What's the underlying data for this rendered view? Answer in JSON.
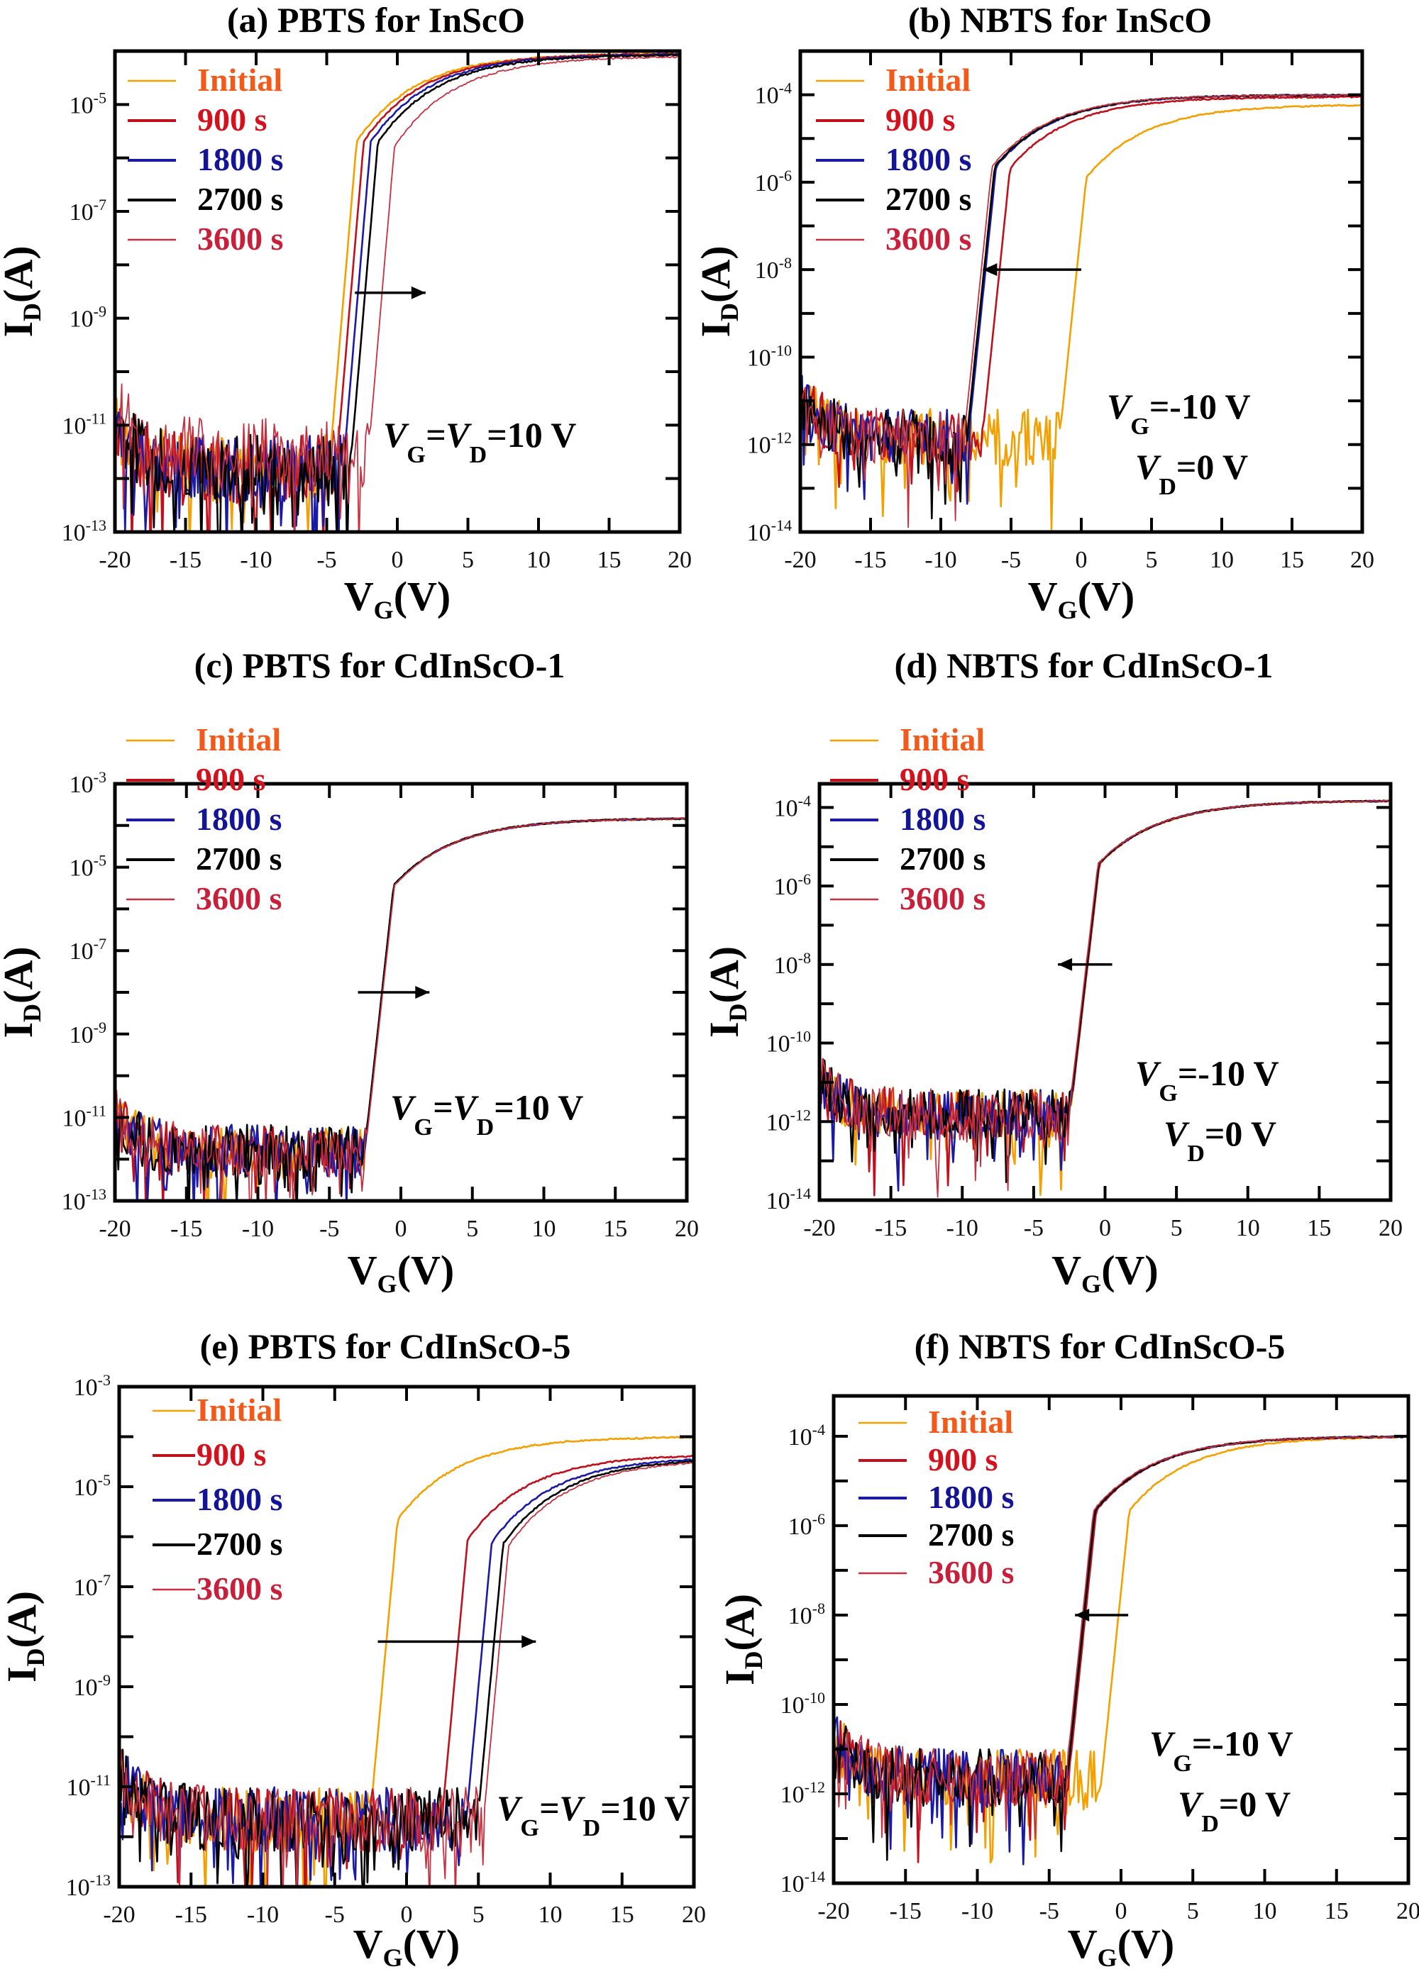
{
  "figure": {
    "series_legend": [
      {
        "name": "Initial",
        "color": "#f4a000",
        "text_color": "#f35a1a"
      },
      {
        "name": "900 s",
        "color": "#c0101c",
        "text_color": "#d4121e"
      },
      {
        "name": "1800 s",
        "color": "#1a1aa6",
        "text_color": "#141496"
      },
      {
        "name": "2700 s",
        "color": "#000000",
        "text_color": "#000000"
      },
      {
        "name": "3600 s",
        "color": "#c83040",
        "text_color": "#c8203a"
      }
    ]
  },
  "chart_data": [
    {
      "id": "a",
      "type": "line",
      "title": "(a) PBTS for InScO",
      "xlabel": "VG(V)",
      "ylabel": "ID(A)",
      "xlim": [
        -20,
        20
      ],
      "ylim": [
        1e-13,
        0.0001
      ],
      "yscale": "log",
      "xticks": [
        -20,
        -15,
        -10,
        -5,
        0,
        5,
        10,
        15,
        20
      ],
      "yticks_labeled": [
        -13,
        -11,
        -9,
        -7,
        -5
      ],
      "condition": [
        "V",
        "G",
        "=V",
        "D",
        "=10 V"
      ],
      "arrow": {
        "direction": "right",
        "x_from": -3,
        "x_to": 2,
        "y": 3e-09
      },
      "series": [
        {
          "name": "Initial",
          "vth": -4.8,
          "ioff": 2e-12,
          "ion": 9e-05
        },
        {
          "name": "900 s",
          "vth": -4.3,
          "ioff": 2e-12,
          "ion": 9e-05
        },
        {
          "name": "1800 s",
          "vth": -3.8,
          "ioff": 2e-12,
          "ion": 8.8e-05
        },
        {
          "name": "2700 s",
          "vth": -3.3,
          "ioff": 2e-12,
          "ion": 8.6e-05
        },
        {
          "name": "3600 s",
          "vth": -2.0,
          "ioff": 4e-12,
          "ion": 8e-05
        }
      ]
    },
    {
      "id": "b",
      "type": "line",
      "title": "(b) NBTS for InScO",
      "xlabel": "VG(V)",
      "ylabel": "ID(A)",
      "xlim": [
        -20,
        20
      ],
      "ylim": [
        1e-14,
        0.001
      ],
      "yscale": "log",
      "xticks": [
        -20,
        -15,
        -10,
        -5,
        0,
        5,
        10,
        15,
        20
      ],
      "yticks_labeled": [
        -14,
        -12,
        -10,
        -8,
        -6,
        -4
      ],
      "condition": [
        "V",
        "G",
        "=-10 V",
        "V",
        "D",
        "=0 V"
      ],
      "arrow": {
        "direction": "left",
        "x_from": 0,
        "x_to": -7,
        "y": 1e-08
      },
      "series": [
        {
          "name": "Initial",
          "vth": -1.5,
          "ioff": 2e-12,
          "ion": 6e-05
        },
        {
          "name": "900 s",
          "vth": -7.0,
          "ioff": 2e-12,
          "ion": 9e-05
        },
        {
          "name": "1800 s",
          "vth": -8.0,
          "ioff": 2e-12,
          "ion": 0.0001
        },
        {
          "name": "2700 s",
          "vth": -8.1,
          "ioff": 2e-12,
          "ion": 0.0001
        },
        {
          "name": "3600 s",
          "vth": -8.3,
          "ioff": 2e-12,
          "ion": 0.0001
        }
      ]
    },
    {
      "id": "c",
      "type": "line",
      "title": "(c) PBTS for CdInScO-1",
      "xlabel": "VG(V)",
      "ylabel": "ID(A)",
      "xlim": [
        -20,
        20
      ],
      "ylim": [
        1e-13,
        0.001
      ],
      "yscale": "log",
      "xticks": [
        -20,
        -15,
        -10,
        -5,
        0,
        5,
        10,
        15,
        20
      ],
      "yticks_labeled": [
        -13,
        -11,
        -9,
        -7,
        -5,
        -3
      ],
      "condition": [
        "V",
        "G",
        "=V",
        "D",
        "=10 V"
      ],
      "arrow": {
        "direction": "right",
        "x_from": -3,
        "x_to": 2,
        "y": 1e-08
      },
      "series": [
        {
          "name": "Initial",
          "vth": -2.5,
          "ioff": 2e-12,
          "ion": 0.00015
        },
        {
          "name": "900 s",
          "vth": -2.5,
          "ioff": 2e-12,
          "ion": 0.00015
        },
        {
          "name": "1800 s",
          "vth": -2.5,
          "ioff": 2e-12,
          "ion": 0.00015
        },
        {
          "name": "2700 s",
          "vth": -2.5,
          "ioff": 2e-12,
          "ion": 0.00015
        },
        {
          "name": "3600 s",
          "vth": -2.45,
          "ioff": 2e-12,
          "ion": 0.00015
        }
      ]
    },
    {
      "id": "d",
      "type": "line",
      "title": "(d) NBTS for CdInScO-1",
      "xlabel": "VG(V)",
      "ylabel": "ID(A)",
      "xlim": [
        -20,
        20
      ],
      "ylim": [
        1e-14,
        0.0004
      ],
      "yscale": "log",
      "xticks": [
        -20,
        -15,
        -10,
        -5,
        0,
        5,
        10,
        15,
        20
      ],
      "yticks_labeled": [
        -14,
        -12,
        -10,
        -8,
        -6,
        -4
      ],
      "condition": [
        "V",
        "G",
        "=-10 V",
        "V",
        "D",
        "=0 V"
      ],
      "arrow": {
        "direction": "left",
        "x_from": 0.5,
        "x_to": -3.3,
        "y": 1e-08
      },
      "series": [
        {
          "name": "Initial",
          "vth": -2.4,
          "ioff": 2e-12,
          "ion": 0.00015
        },
        {
          "name": "900 s",
          "vth": -2.4,
          "ioff": 2e-12,
          "ion": 0.00015
        },
        {
          "name": "1800 s",
          "vth": -2.45,
          "ioff": 2e-12,
          "ion": 0.00015
        },
        {
          "name": "2700 s",
          "vth": -2.45,
          "ioff": 2e-12,
          "ion": 0.00015
        },
        {
          "name": "3600 s",
          "vth": -2.5,
          "ioff": 2e-12,
          "ion": 0.00015
        }
      ]
    },
    {
      "id": "e",
      "type": "line",
      "title": "(e) PBTS for CdInScO-5",
      "xlabel": "VG(V)",
      "ylabel": "ID(A)",
      "xlim": [
        -20,
        20
      ],
      "ylim": [
        1e-13,
        0.001
      ],
      "yscale": "log",
      "xticks": [
        -20,
        -15,
        -10,
        -5,
        0,
        5,
        10,
        15,
        20
      ],
      "yticks_labeled": [
        -13,
        -11,
        -9,
        -7,
        -5,
        -3
      ],
      "condition": [
        "V",
        "G",
        "=V",
        "D",
        "=10 V"
      ],
      "arrow": {
        "direction": "right",
        "x_from": -2,
        "x_to": 9,
        "y": 8e-09
      },
      "series": [
        {
          "name": "Initial",
          "vth": -2.5,
          "ioff": 3e-12,
          "ion": 0.0001
        },
        {
          "name": "900 s",
          "vth": 2.5,
          "ioff": 3e-12,
          "ion": 4.5e-05
        },
        {
          "name": "1800 s",
          "vth": 4.2,
          "ioff": 3e-12,
          "ion": 4e-05
        },
        {
          "name": "2700 s",
          "vth": 5.0,
          "ioff": 3e-12,
          "ion": 3.8e-05
        },
        {
          "name": "3600 s",
          "vth": 5.4,
          "ioff": 3e-12,
          "ion": 3.6e-05
        }
      ]
    },
    {
      "id": "f",
      "type": "line",
      "title": "(f) NBTS for CdInScO-5",
      "xlabel": "VG(V)",
      "ylabel": "ID(A)",
      "xlim": [
        -20,
        20
      ],
      "ylim": [
        1e-14,
        0.0008
      ],
      "yscale": "log",
      "xticks": [
        -20,
        -15,
        -10,
        -5,
        0,
        5,
        10,
        15,
        20
      ],
      "yticks_labeled": [
        -14,
        -12,
        -10,
        -8,
        -6,
        -4
      ],
      "condition": [
        "V",
        "G",
        "=-10 V",
        "V",
        "D",
        "=0 V"
      ],
      "arrow": {
        "direction": "left",
        "x_from": 0.5,
        "x_to": -3.2,
        "y": 1e-08
      },
      "series": [
        {
          "name": "Initial",
          "vth": -1.3,
          "ioff": 3e-12,
          "ion": 0.0001
        },
        {
          "name": "900 s",
          "vth": -3.6,
          "ioff": 3e-12,
          "ion": 0.0001
        },
        {
          "name": "1800 s",
          "vth": -3.7,
          "ioff": 3e-12,
          "ion": 0.0001
        },
        {
          "name": "2700 s",
          "vth": -3.7,
          "ioff": 3e-12,
          "ion": 0.0001
        },
        {
          "name": "3600 s",
          "vth": -3.8,
          "ioff": 3e-12,
          "ion": 0.0001
        }
      ]
    }
  ]
}
